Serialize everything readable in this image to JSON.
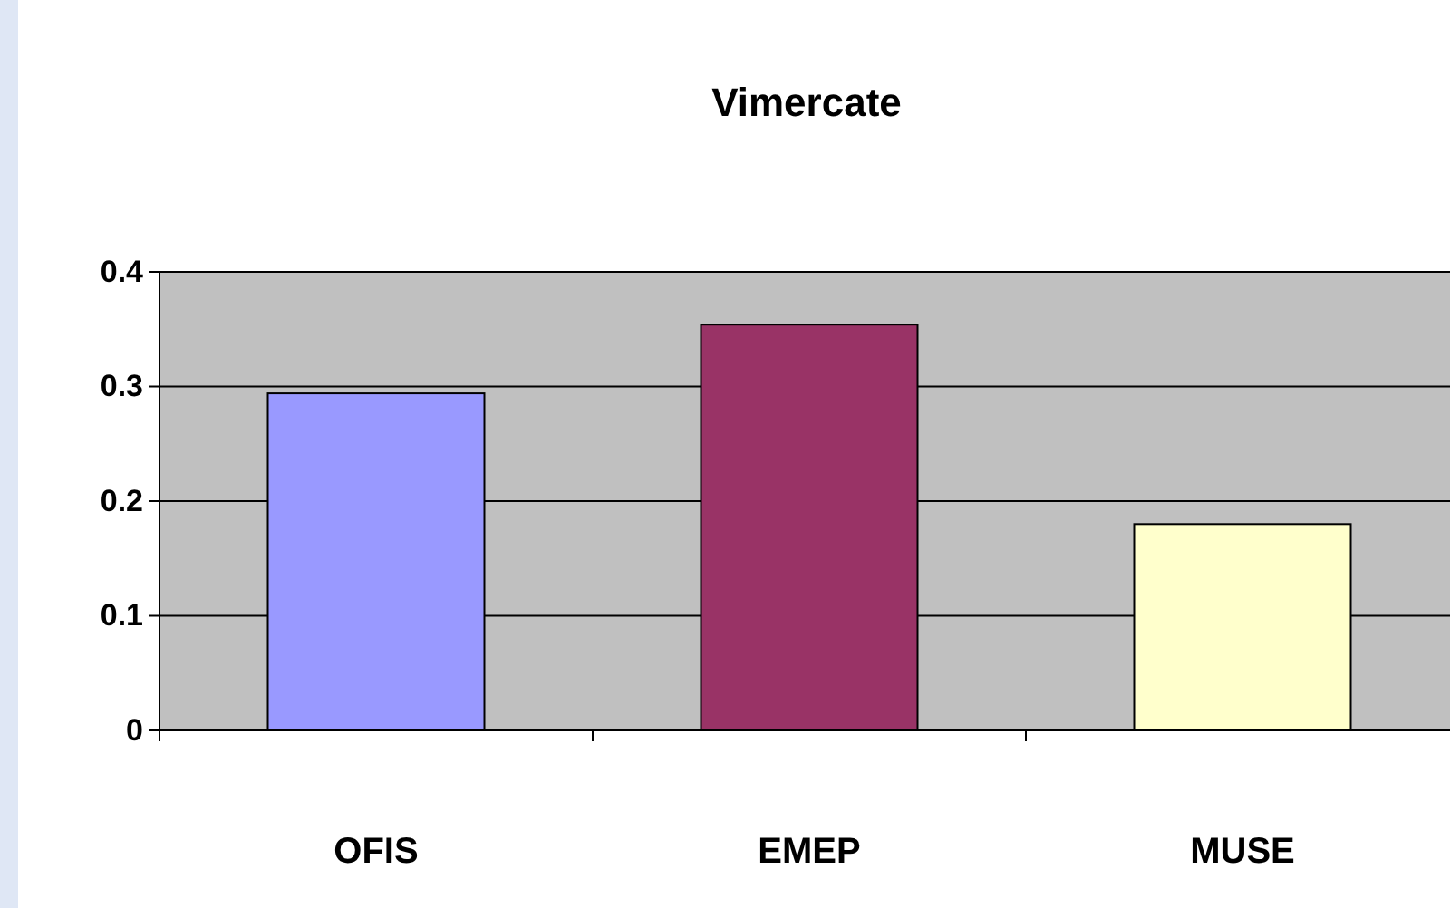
{
  "chart_data": {
    "type": "bar",
    "title": "Vimercate",
    "categories": [
      "OFIS",
      "EMEP",
      "MUSE"
    ],
    "values": [
      0.294,
      0.354,
      0.18
    ],
    "colors": [
      "#9999ff",
      "#993366",
      "#ffffcc"
    ],
    "ylim": [
      0,
      0.4
    ],
    "yticks": [
      0,
      0.1,
      0.2,
      0.3,
      0.4
    ],
    "grid": "y"
  }
}
